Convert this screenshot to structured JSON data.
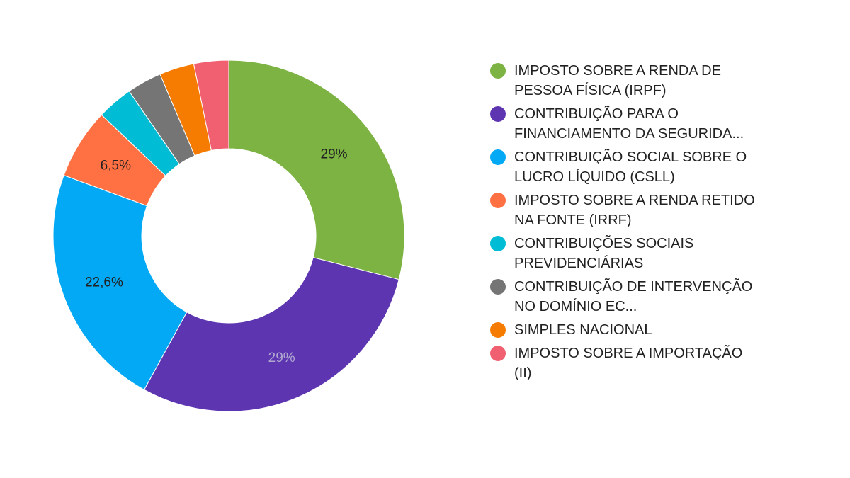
{
  "chart_data": {
    "type": "pie",
    "donut": true,
    "legend_position": "right",
    "slices": [
      {
        "name": "IMPOSTO SOBRE A RENDA DE PESSOA FÍSICA (IRPF)",
        "value": 29,
        "label": "29%",
        "color": "#7cb342",
        "label_color": "#212121"
      },
      {
        "name": "CONTRIBUIÇÃO PARA O FINANCIAMENTO DA SEGURIDA...",
        "value": 29,
        "label": "29%",
        "color": "#5e35b1",
        "label_color": "#b0a8d0"
      },
      {
        "name": "CONTRIBUIÇÃO SOCIAL SOBRE O LUCRO LÍQUIDO (CSLL)",
        "value": 22.6,
        "label": "22,6%",
        "color": "#03a9f4",
        "label_color": "#212121"
      },
      {
        "name": "IMPOSTO SOBRE A RENDA RETIDO NA FONTE (IRRF)",
        "value": 6.5,
        "label": "6,5%",
        "color": "#ff7043",
        "label_color": "#212121"
      },
      {
        "name": "CONTRIBUIÇÕES SOCIAIS PREVIDENCIÁRIAS",
        "value": 3.3,
        "label": "",
        "color": "#00bcd4",
        "label_color": "#212121"
      },
      {
        "name": "CONTRIBUIÇÃO DE INTERVENÇÃO NO DOMÍNIO EC...",
        "value": 3.2,
        "label": "",
        "color": "#757575",
        "label_color": "#212121"
      },
      {
        "name": "SIMPLES NACIONAL",
        "value": 3.2,
        "label": "",
        "color": "#f57c00",
        "label_color": "#212121"
      },
      {
        "name": "IMPOSTO SOBRE A IMPORTAÇÃO (II)",
        "value": 3.2,
        "label": "",
        "color": "#f06070",
        "label_color": "#212121"
      }
    ]
  }
}
